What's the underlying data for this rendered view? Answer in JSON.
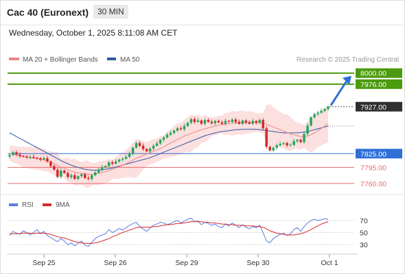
{
  "header": {
    "title": "Cac 40 (Euronext)",
    "timeframe": "30 MIN",
    "timestamp": "Wednesday, October 1, 2025 8:11:08 AM CET"
  },
  "colors": {
    "ma20": "#e98888",
    "ma50": "#2b59a8",
    "up_candle": "#26a65b",
    "down_candle": "#d62828",
    "band_fill": "#fbd4d4",
    "resistance": "#4c9a0e",
    "support": "#e66a6a",
    "pivot": "#2f6fd6",
    "last_price": "#2f2f2f",
    "rsi": "#5b7be0",
    "rsi_ma": "#d62828"
  },
  "chart_data": [
    {
      "type": "candlestick",
      "legend": [
        "MA 20 + Bollinger Bands",
        "MA 50"
      ],
      "source": "Research © 2025 Trading Central",
      "x_tick_labels": [
        "Sep 25",
        "Sep 26",
        "Sep 29",
        "Sep 30",
        "Oct 1"
      ],
      "ylim": [
        7745,
        8010
      ],
      "levels": [
        {
          "label": "8000.00",
          "value": 8000,
          "kind": "resistance"
        },
        {
          "label": "7976.00",
          "value": 7976,
          "kind": "resistance"
        },
        {
          "label": "7927.00",
          "value": 7927,
          "kind": "last"
        },
        {
          "label": "7825.00",
          "value": 7825,
          "kind": "pivot"
        },
        {
          "label": "7795.00",
          "value": 7795,
          "kind": "support"
        },
        {
          "label": "7760.00",
          "value": 7760,
          "kind": "support"
        }
      ],
      "close": [
        7822,
        7828,
        7823,
        7820,
        7819,
        7817,
        7818,
        7816,
        7815,
        7812,
        7815,
        7808,
        7798,
        7790,
        7775,
        7788,
        7783,
        7774,
        7778,
        7770,
        7776,
        7780,
        7772,
        7770,
        7778,
        7784,
        7790,
        7795,
        7798,
        7806,
        7803,
        7808,
        7812,
        7814,
        7818,
        7825,
        7838,
        7848,
        7842,
        7835,
        7830,
        7836,
        7842,
        7847,
        7855,
        7860,
        7866,
        7870,
        7875,
        7880,
        7878,
        7885,
        7892,
        7900,
        7894,
        7897,
        7890,
        7898,
        7894,
        7891,
        7896,
        7893,
        7890,
        7896,
        7894,
        7899,
        7894,
        7890,
        7897,
        7893,
        7890,
        7896,
        7892,
        7898,
        7880,
        7840,
        7832,
        7838,
        7843,
        7846,
        7848,
        7843,
        7844,
        7852,
        7855,
        7850,
        7868,
        7886,
        7904,
        7911,
        7914,
        7918,
        7922,
        7927
      ],
      "ma20": [
        7826,
        7824,
        7822,
        7820,
        7818,
        7817,
        7816,
        7815,
        7814,
        7813,
        7811,
        7809,
        7806,
        7803,
        7799,
        7796,
        7793,
        7790,
        7787,
        7785,
        7783,
        7782,
        7781,
        7780,
        7780,
        7781,
        7782,
        7784,
        7786,
        7788,
        7791,
        7794,
        7797,
        7800,
        7803,
        7807,
        7811,
        7815,
        7818,
        7821,
        7824,
        7827,
        7830,
        7833,
        7836,
        7840,
        7844,
        7848,
        7852,
        7856,
        7859,
        7863,
        7866,
        7869,
        7872,
        7874,
        7877,
        7879,
        7881,
        7883,
        7885,
        7887,
        7888,
        7889,
        7890,
        7891,
        7891,
        7892,
        7892,
        7892,
        7893,
        7893,
        7893,
        7892,
        7891,
        7889,
        7886,
        7883,
        7880,
        7877,
        7874,
        7871,
        7868,
        7866,
        7864,
        7862,
        7862,
        7863,
        7866,
        7870,
        7875,
        7880,
        7885,
        7890
      ],
      "ma50": [
        7870,
        7866,
        7862,
        7858,
        7854,
        7850,
        7846,
        7842,
        7838,
        7834,
        7830,
        7826,
        7822,
        7818,
        7814,
        7810,
        7806,
        7803,
        7800,
        7797,
        7795,
        7793,
        7791,
        7790,
        7789,
        7789,
        7789,
        7790,
        7791,
        7792,
        7794,
        7796,
        7798,
        7800,
        7802,
        7804,
        7806,
        7808,
        7810,
        7812,
        7814,
        7816,
        7819,
        7822,
        7825,
        7828,
        7831,
        7834,
        7837,
        7840,
        7843,
        7846,
        7849,
        7852,
        7855,
        7858,
        7861,
        7864,
        7866,
        7868,
        7870,
        7872,
        7873,
        7874,
        7875,
        7876,
        7877,
        7877,
        7878,
        7878,
        7878,
        7878,
        7878,
        7877,
        7876,
        7875,
        7874,
        7873,
        7872,
        7871,
        7870,
        7870,
        7870,
        7870,
        7870,
        7871,
        7872,
        7873,
        7875,
        7877,
        7879,
        7881,
        7883,
        7885
      ]
    },
    {
      "type": "line",
      "legend": [
        "RSI",
        "9MA"
      ],
      "y_tick_labels": [
        "70",
        "50",
        "30"
      ],
      "ylim": [
        20,
        80
      ],
      "rsi": [
        45,
        52,
        49,
        47,
        53,
        50,
        46,
        50,
        55,
        48,
        52,
        45,
        42,
        38,
        35,
        40,
        36,
        30,
        33,
        28,
        32,
        36,
        29,
        27,
        34,
        40,
        44,
        46,
        48,
        55,
        50,
        53,
        57,
        54,
        58,
        62,
        65,
        67,
        60,
        56,
        52,
        57,
        62,
        64,
        67,
        66,
        63,
        65,
        68,
        70,
        66,
        69,
        72,
        74,
        68,
        69,
        63,
        67,
        65,
        62,
        64,
        60,
        58,
        64,
        61,
        66,
        62,
        58,
        63,
        59,
        56,
        60,
        58,
        62,
        50,
        36,
        33,
        40,
        44,
        47,
        49,
        45,
        48,
        55,
        58,
        52,
        60,
        66,
        70,
        72,
        70,
        71,
        73,
        72
      ],
      "rsi_ma": [
        48,
        48,
        48,
        48,
        49,
        49,
        49,
        48,
        49,
        49,
        49,
        48,
        47,
        45,
        43,
        42,
        41,
        39,
        37,
        35,
        34,
        33,
        32,
        32,
        32,
        33,
        34,
        36,
        38,
        40,
        43,
        45,
        48,
        50,
        52,
        54,
        56,
        58,
        59,
        59,
        59,
        59,
        60,
        60,
        61,
        62,
        63,
        63,
        64,
        65,
        65,
        66,
        67,
        68,
        68,
        68,
        68,
        67,
        67,
        66,
        66,
        65,
        64,
        64,
        63,
        63,
        62,
        62,
        62,
        61,
        61,
        61,
        60,
        60,
        59,
        56,
        53,
        51,
        49,
        48,
        47,
        46,
        46,
        46,
        47,
        48,
        50,
        52,
        55,
        58,
        61,
        64,
        66,
        68
      ]
    }
  ]
}
